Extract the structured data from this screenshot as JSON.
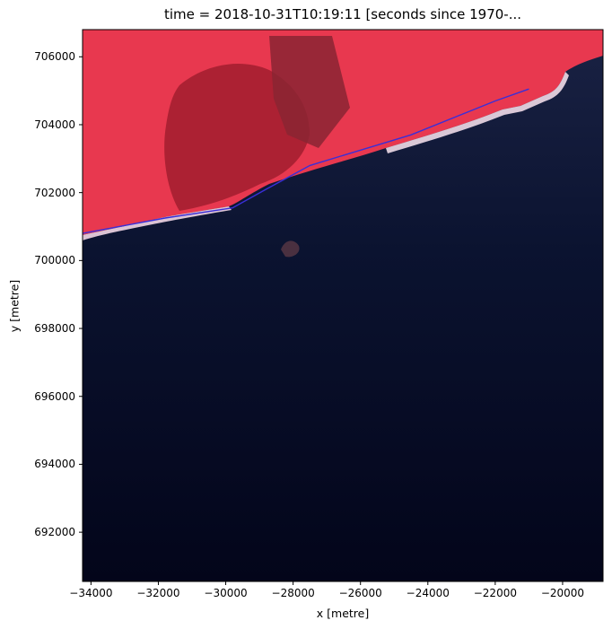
{
  "figure": {
    "title": "time = 2018-10-31T10:19:11 [seconds since 1970-...",
    "xlabel": "x [metre]",
    "ylabel": "y [metre]"
  },
  "axes": {
    "x_ticks": [
      {
        "value": -34000,
        "label": "−34000"
      },
      {
        "value": -32000,
        "label": "−32000"
      },
      {
        "value": -30000,
        "label": "−30000"
      },
      {
        "value": -28000,
        "label": "−28000"
      },
      {
        "value": -26000,
        "label": "−26000"
      },
      {
        "value": -24000,
        "label": "−24000"
      },
      {
        "value": -22000,
        "label": "−22000"
      },
      {
        "value": -20000,
        "label": "−20000"
      }
    ],
    "y_ticks": [
      {
        "value": 692000,
        "label": "692000"
      },
      {
        "value": 694000,
        "label": "694000"
      },
      {
        "value": 696000,
        "label": "696000"
      },
      {
        "value": 698000,
        "label": "698000"
      },
      {
        "value": 700000,
        "label": "700000"
      },
      {
        "value": 702000,
        "label": "702000"
      },
      {
        "value": 704000,
        "label": "704000"
      },
      {
        "value": 706000,
        "label": "706000"
      }
    ],
    "xlim": [
      -34250,
      -18800
    ],
    "ylim": [
      690550,
      706800
    ]
  },
  "image": {
    "land_color": "#e8384f",
    "lagoon_color": "#a8202e",
    "sea_color": "#0e1630",
    "deep_sea_color": "#04061a",
    "beach_color": "#f2d6e6",
    "boundary_color": "#3a2fd8"
  },
  "boundary_line": [
    [
      -34250,
      700800
    ],
    [
      -31800,
      701250
    ],
    [
      -29800,
      701550
    ],
    [
      -28800,
      702100
    ],
    [
      -27500,
      702800
    ],
    [
      -24500,
      703700
    ],
    [
      -22000,
      704700
    ],
    [
      -21000,
      705050
    ]
  ]
}
